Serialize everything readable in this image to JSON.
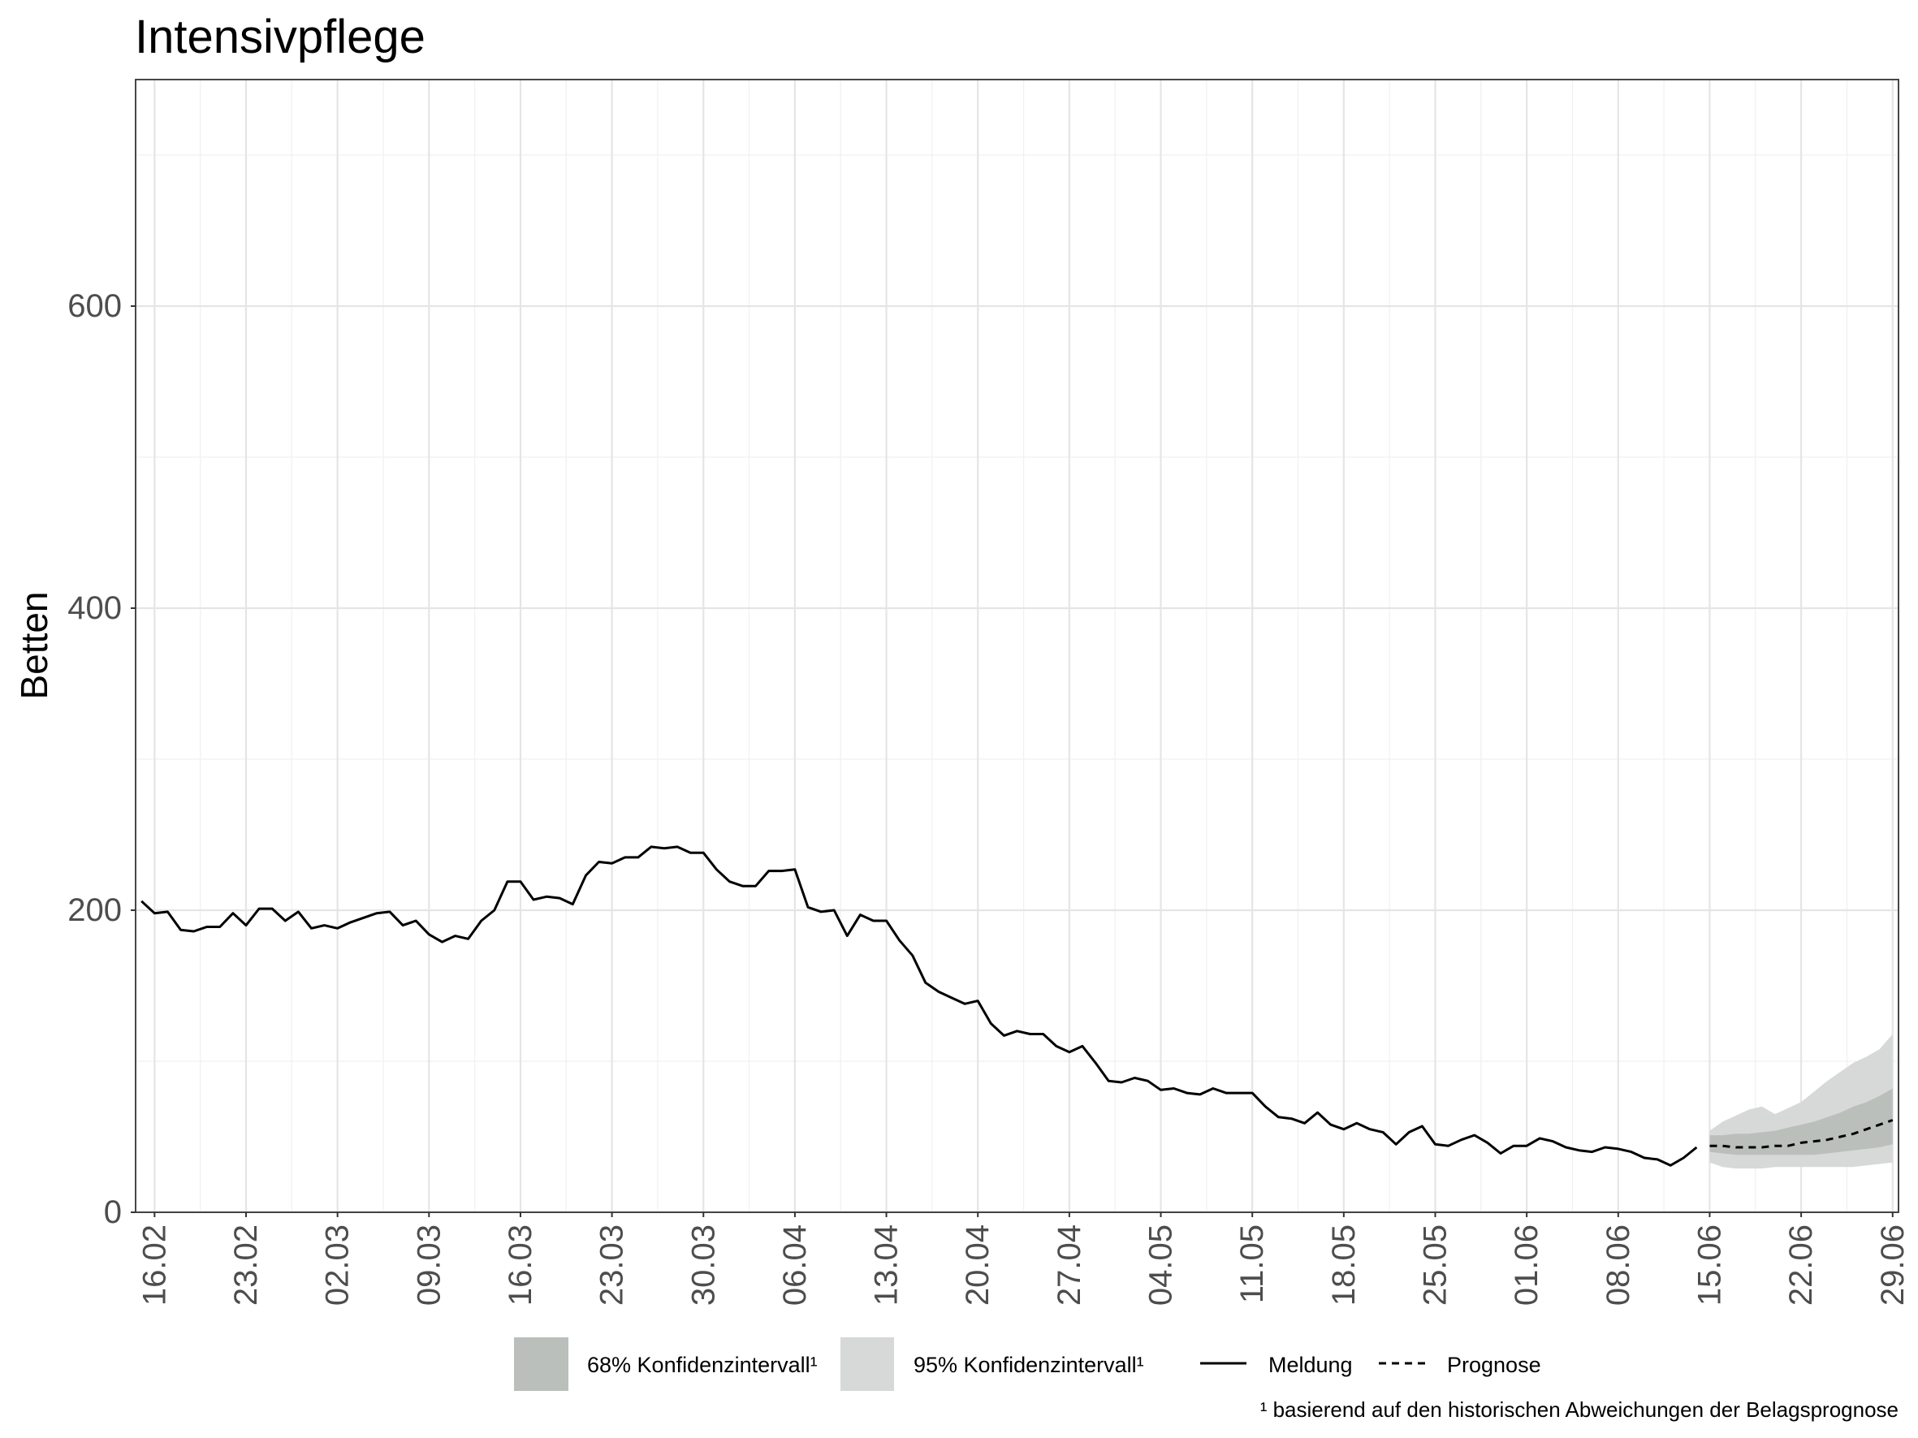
{
  "chart_data": {
    "type": "line",
    "title": "Intensivpflege",
    "xlabel": "",
    "ylabel": "Betten",
    "xlim": [
      "15.02",
      "29.06"
    ],
    "ylim": [
      0,
      750
    ],
    "xticks": [
      "16.02",
      "23.02",
      "02.03",
      "09.03",
      "16.03",
      "23.03",
      "30.03",
      "06.04",
      "13.04",
      "20.04",
      "27.04",
      "04.05",
      "11.05",
      "18.05",
      "25.05",
      "01.06",
      "08.06",
      "15.06",
      "22.06",
      "29.06"
    ],
    "yticks": [
      0,
      200,
      400,
      600
    ],
    "grid": true,
    "legend_position": "bottom",
    "series": [
      {
        "name": "Meldung",
        "dashed": false,
        "color": "#000000",
        "x": [
          "15.02",
          "16.02",
          "17.02",
          "18.02",
          "19.02",
          "20.02",
          "21.02",
          "22.02",
          "23.02",
          "24.02",
          "25.02",
          "26.02",
          "27.02",
          "28.02",
          "01.03",
          "02.03",
          "03.03",
          "04.03",
          "05.03",
          "06.03",
          "07.03",
          "08.03",
          "09.03",
          "10.03",
          "11.03",
          "12.03",
          "13.03",
          "14.03",
          "15.03",
          "16.03",
          "17.03",
          "18.03",
          "19.03",
          "20.03",
          "21.03",
          "22.03",
          "23.03",
          "24.03",
          "25.03",
          "26.03",
          "27.03",
          "28.03",
          "29.03",
          "30.03",
          "31.03",
          "01.04",
          "02.04",
          "03.04",
          "04.04",
          "05.04",
          "06.04",
          "07.04",
          "08.04",
          "09.04",
          "10.04",
          "11.04",
          "12.04",
          "13.04",
          "14.04",
          "15.04",
          "16.04",
          "17.04",
          "18.04",
          "19.04",
          "20.04",
          "21.04",
          "22.04",
          "23.04",
          "24.04",
          "25.04",
          "26.04",
          "27.04",
          "28.04",
          "29.04",
          "30.04",
          "01.05",
          "02.05",
          "03.05",
          "04.05",
          "05.05",
          "06.05",
          "07.05",
          "08.05",
          "09.05",
          "10.05",
          "11.05",
          "12.05",
          "13.05",
          "14.05",
          "15.05",
          "16.05",
          "17.05",
          "18.05",
          "19.05",
          "20.05",
          "21.05",
          "22.05",
          "23.05",
          "24.05",
          "25.05",
          "26.05",
          "27.05",
          "28.05",
          "29.05",
          "30.05",
          "31.05",
          "01.06",
          "02.06",
          "03.06",
          "04.06",
          "05.06",
          "06.06",
          "07.06",
          "08.06",
          "09.06",
          "10.06",
          "11.06",
          "12.06",
          "13.06",
          "14.06"
        ],
        "values": [
          206,
          198,
          199,
          187,
          186,
          189,
          189,
          198,
          190,
          201,
          201,
          193,
          199,
          188,
          190,
          188,
          192,
          195,
          198,
          199,
          190,
          193,
          184,
          179,
          183,
          181,
          193,
          200,
          219,
          219,
          207,
          209,
          208,
          204,
          223,
          232,
          231,
          235,
          235,
          242,
          241,
          242,
          238,
          238,
          227,
          219,
          216,
          216,
          226,
          226,
          227,
          202,
          199,
          200,
          183,
          197,
          193,
          193,
          180,
          170,
          152,
          146,
          142,
          138,
          140,
          125,
          117,
          120,
          118,
          118,
          110,
          106,
          110,
          99,
          87,
          86,
          89,
          87,
          81,
          82,
          79,
          78,
          82,
          79,
          79,
          79,
          70,
          63,
          62,
          59,
          66,
          58,
          55,
          59,
          55,
          53,
          45,
          53,
          57,
          45,
          44,
          48,
          51,
          46,
          39,
          44,
          44,
          49,
          47,
          43,
          41,
          40,
          43,
          42,
          40,
          36,
          35,
          31,
          36,
          43
        ]
      },
      {
        "name": "Prognose",
        "dashed": true,
        "color": "#000000",
        "x": [
          "15.06",
          "16.06",
          "17.06",
          "18.06",
          "19.06",
          "20.06",
          "21.06",
          "22.06",
          "23.06",
          "24.06",
          "25.06",
          "26.06",
          "27.06",
          "28.06",
          "29.06"
        ],
        "values": [
          44,
          44,
          43,
          43,
          43,
          44,
          44,
          46,
          47,
          48,
          50,
          52,
          55,
          58,
          61
        ]
      }
    ],
    "bands": [
      {
        "name": "68% Konfidenzintervall¹",
        "color": "#babfbc",
        "x": [
          "15.06",
          "16.06",
          "17.06",
          "18.06",
          "19.06",
          "20.06",
          "21.06",
          "22.06",
          "23.06",
          "24.06",
          "25.06",
          "26.06",
          "27.06",
          "28.06",
          "29.06"
        ],
        "lower": [
          40,
          39,
          38,
          38,
          38,
          38,
          38,
          38,
          38,
          39,
          40,
          41,
          42,
          43,
          45
        ],
        "upper": [
          51,
          51,
          52,
          52,
          53,
          54,
          56,
          58,
          60,
          63,
          66,
          70,
          73,
          77,
          82
        ]
      },
      {
        "name": "95% Konfidenzintervall¹",
        "color": "#d6d9d8",
        "x": [
          "15.06",
          "16.06",
          "17.06",
          "18.06",
          "19.06",
          "20.06",
          "21.06",
          "22.06",
          "23.06",
          "24.06",
          "25.06",
          "26.06",
          "27.06",
          "28.06",
          "29.06"
        ],
        "lower": [
          33,
          30,
          29,
          29,
          29,
          30,
          30,
          30,
          30,
          30,
          30,
          30,
          31,
          32,
          33
        ],
        "upper": [
          54,
          60,
          64,
          68,
          70,
          65,
          69,
          73,
          80,
          87,
          93,
          99,
          103,
          108,
          118
        ]
      }
    ],
    "footnote": "¹ basierend auf den historischen Abweichungen der Belagsprognose"
  }
}
